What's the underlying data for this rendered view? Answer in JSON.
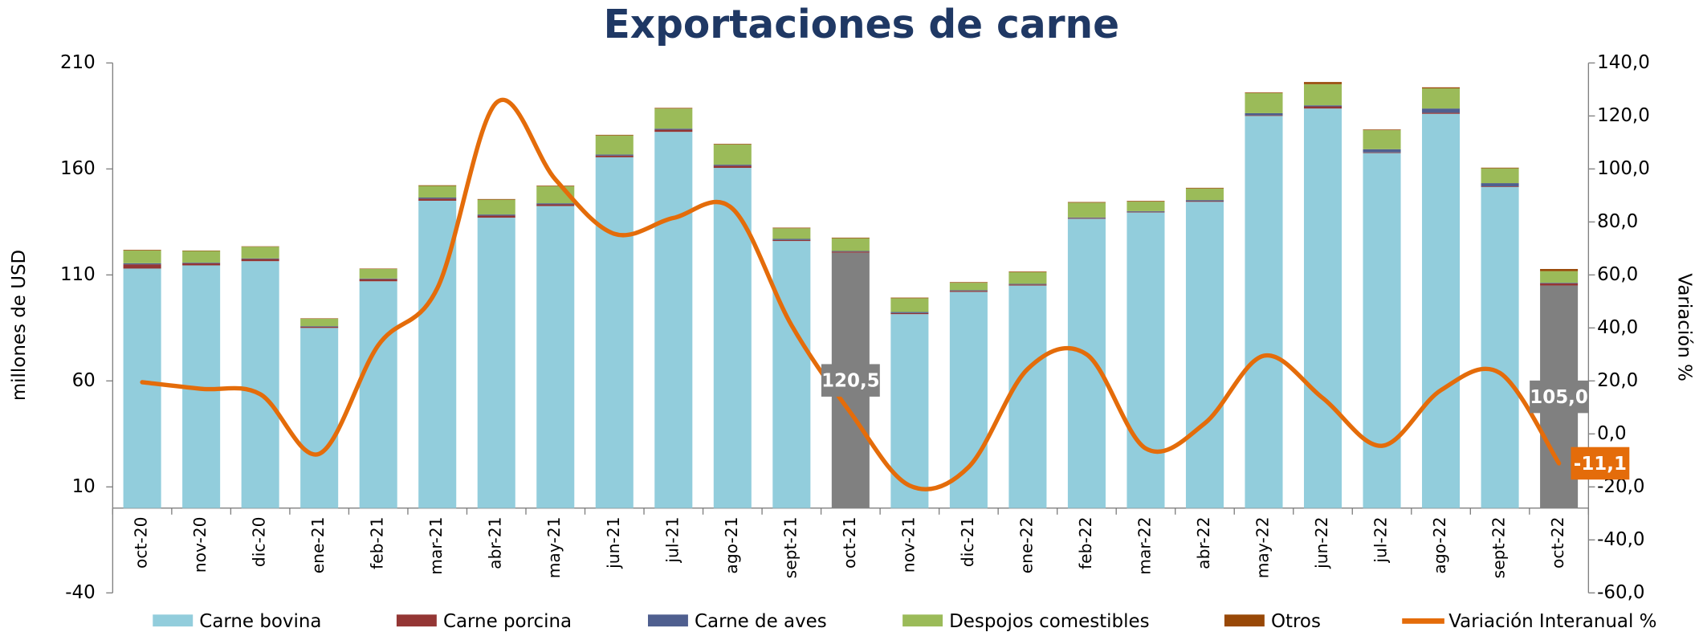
{
  "chart_data": {
    "type": "bar",
    "title": "Exportaciones de carne",
    "ylabel": "millones de  USD",
    "y2label": "Variación %",
    "categories": [
      "oct-20",
      "nov-20",
      "dic-20",
      "ene-21",
      "feb-21",
      "mar-21",
      "abr-21",
      "may-21",
      "jun-21",
      "jul-21",
      "ago-21",
      "sept-21",
      "oct-21",
      "nov-21",
      "dic-21",
      "ene-22",
      "feb-22",
      "mar-22",
      "abr-22",
      "may-22",
      "jun-22",
      "jul-22",
      "ago-22",
      "sept-22",
      "oct-22"
    ],
    "stacked": true,
    "series": [
      {
        "name": "Carne bovina",
        "color": "#92cddc",
        "colors": [
          "#92cddc",
          "#92cddc",
          "#92cddc",
          "#92cddc",
          "#92cddc",
          "#92cddc",
          "#92cddc",
          "#92cddc",
          "#92cddc",
          "#92cddc",
          "#92cddc",
          "#92cddc",
          "#808080",
          "#92cddc",
          "#92cddc",
          "#92cddc",
          "#92cddc",
          "#92cddc",
          "#92cddc",
          "#92cddc",
          "#92cddc",
          "#92cddc",
          "#92cddc",
          "#92cddc",
          "#808080"
        ],
        "values": [
          113,
          114.5,
          116.5,
          85,
          107,
          145,
          137,
          142.5,
          165.5,
          177.5,
          160.5,
          126,
          120.5,
          91.5,
          102,
          105,
          136.5,
          139.5,
          144.5,
          185,
          188.5,
          167.5,
          186,
          151.5,
          105
        ],
        "value_labels": [
          null,
          null,
          null,
          null,
          null,
          null,
          null,
          null,
          null,
          null,
          null,
          null,
          "120,5",
          null,
          null,
          null,
          null,
          null,
          null,
          null,
          null,
          null,
          null,
          null,
          "105,0"
        ]
      },
      {
        "name": "Carne porcina",
        "color": "#943634",
        "values": [
          2,
          1,
          1,
          0.5,
          1,
          1,
          1,
          0.8,
          0.8,
          1,
          1,
          0.5,
          0.5,
          0.5,
          0.5,
          0.5,
          0.3,
          0.3,
          0.3,
          0.3,
          1,
          0.3,
          0.5,
          0.3,
          1
        ]
      },
      {
        "name": "Carne de aves",
        "color": "#4f5f8f",
        "values": [
          0.5,
          0.3,
          0.3,
          0.3,
          0.3,
          0.5,
          0.5,
          0.5,
          0.5,
          0.5,
          0.5,
          0.5,
          0.3,
          0.5,
          0.3,
          0.3,
          0.3,
          0.3,
          0.5,
          1,
          0.5,
          1.5,
          2,
          1.5,
          0.3
        ]
      },
      {
        "name": "Despojos comestibles",
        "color": "#9bbb59",
        "values": [
          6,
          5.5,
          5.5,
          3.5,
          4.5,
          5.5,
          7,
          8,
          9,
          9.5,
          9.5,
          5,
          6,
          6.5,
          3.5,
          5.5,
          7,
          4.5,
          5.5,
          9.5,
          10,
          9,
          9.5,
          7,
          5.5
        ]
      },
      {
        "name": "Otros",
        "color": "#984807",
        "values": [
          0.3,
          0.2,
          0.2,
          0.2,
          0.2,
          0.3,
          0.3,
          0.3,
          0.3,
          0.3,
          0.3,
          0.3,
          0.3,
          0.3,
          0.3,
          0.3,
          0.3,
          0.3,
          0.3,
          0.3,
          1,
          0.3,
          0.5,
          0.3,
          1
        ]
      },
      {
        "name": "Variación Interanual %",
        "color": "#e46c0a",
        "type": "line",
        "axis": "y2",
        "values": [
          19.5,
          17,
          15,
          -7.5,
          33.5,
          55,
          125,
          96,
          75.5,
          81.5,
          85,
          41,
          8,
          -19.5,
          -12.5,
          24.5,
          30,
          -5.5,
          4,
          29.5,
          13.5,
          -4.5,
          16.5,
          23,
          -11.1
        ],
        "value_labels": [
          null,
          null,
          null,
          null,
          null,
          null,
          null,
          null,
          null,
          null,
          null,
          null,
          null,
          null,
          null,
          null,
          null,
          null,
          null,
          null,
          null,
          null,
          null,
          null,
          "-11,1"
        ]
      }
    ],
    "ylim": [
      -40,
      210
    ],
    "yticks": [
      -40,
      10,
      60,
      110,
      160,
      210
    ],
    "y2lim": [
      -60,
      140
    ],
    "y2ticks": [
      {
        "value": -60,
        "label": "-60,0"
      },
      {
        "value": -40,
        "label": "-40,0"
      },
      {
        "value": -20,
        "label": "-20,0"
      },
      {
        "value": 0,
        "label": "0,0"
      },
      {
        "value": 20,
        "label": "20,0"
      },
      {
        "value": 40,
        "label": "40,0"
      },
      {
        "value": 60,
        "label": "60,0"
      },
      {
        "value": 80,
        "label": "80,0"
      },
      {
        "value": 100,
        "label": "100,0"
      },
      {
        "value": 120,
        "label": "120,0"
      },
      {
        "value": 140,
        "label": "140,0"
      }
    ],
    "grid": false,
    "legend": "bottom"
  }
}
